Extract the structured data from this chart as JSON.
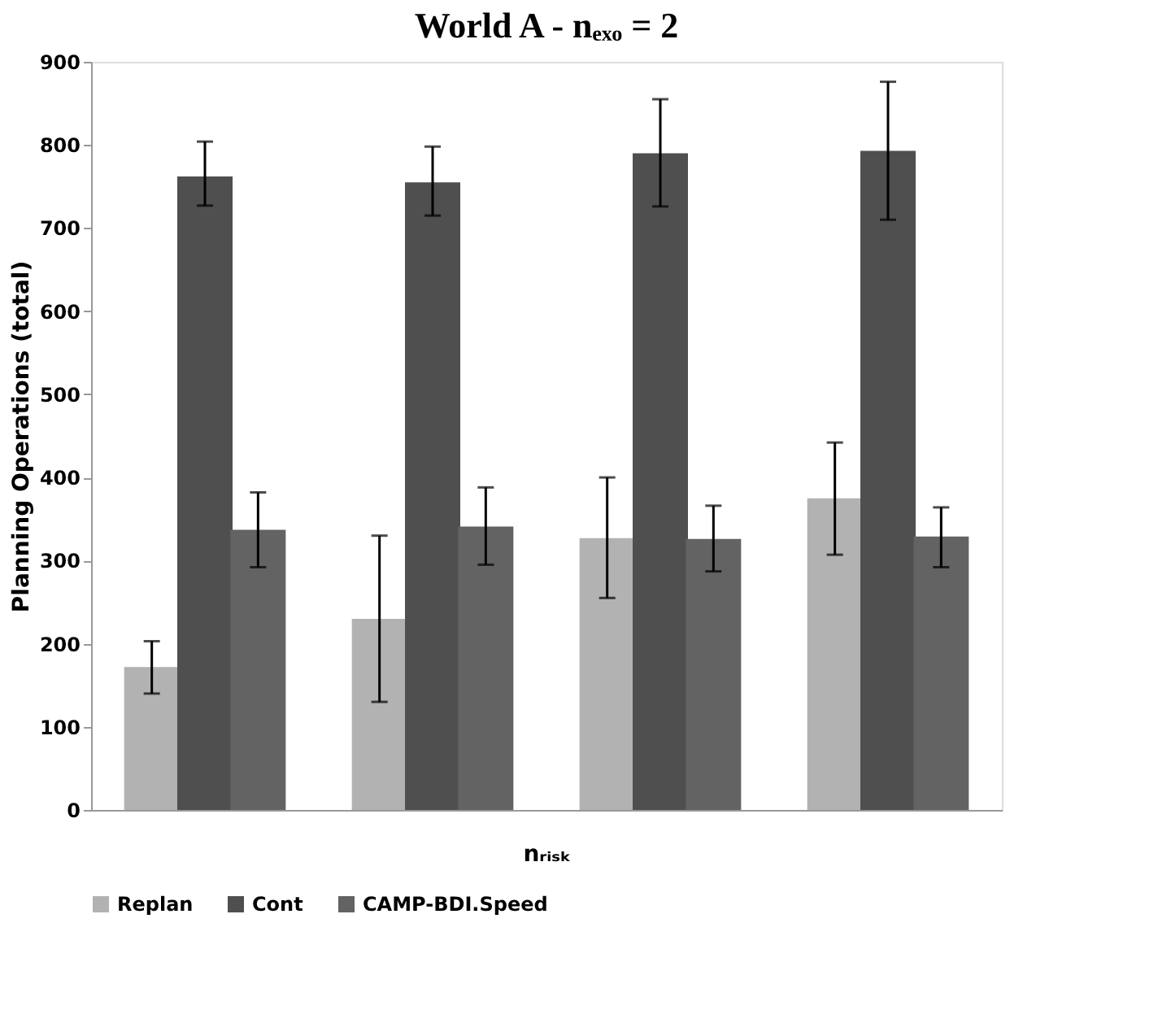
{
  "chart_data": {
    "type": "bar",
    "title": "World A - nₑₓₒ = 2",
    "xlabel": "nᵣᵢₛₖ",
    "ylabel": "Planning Operations (total)",
    "categories": [
      null,
      null,
      null,
      null
    ],
    "series": [
      {
        "name": "Replan",
        "color": "#b2b2b2",
        "values": [
          172,
          230,
          327,
          375
        ],
        "errors": [
          [
            140,
            203
          ],
          [
            130,
            330
          ],
          [
            255,
            400
          ],
          [
            307,
            442
          ]
        ]
      },
      {
        "name": "Cont",
        "color": "#4f4f4f",
        "values": [
          762,
          755,
          790,
          793
        ],
        "errors": [
          [
            727,
            804
          ],
          [
            715,
            798
          ],
          [
            726,
            855
          ],
          [
            710,
            876
          ]
        ]
      },
      {
        "name": "CAMP-BDI.Speed",
        "color": "#636363",
        "values": [
          337,
          341,
          326,
          329
        ],
        "errors": [
          [
            292,
            382
          ],
          [
            295,
            388
          ],
          [
            287,
            366
          ],
          [
            292,
            364
          ]
        ]
      }
    ],
    "ylim": [
      0,
      900
    ],
    "yticks": [
      0,
      100,
      200,
      300,
      400,
      500,
      600,
      700,
      800,
      900
    ],
    "grid": false,
    "legend": "bottom",
    "tick_labels": "y"
  }
}
